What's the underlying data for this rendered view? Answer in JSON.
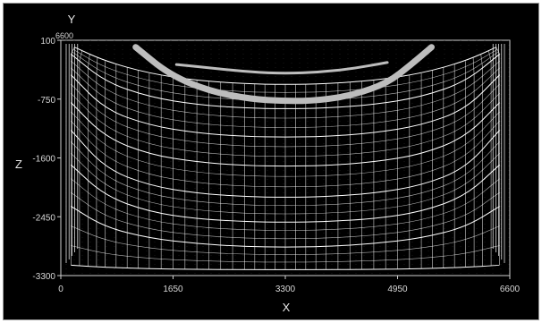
{
  "viewer": {
    "x_axis_letter": "X",
    "y_axis_letter": "Y",
    "z_axis_letter": "Z",
    "corner_label": "6600"
  },
  "colors": {
    "background": "#000000",
    "mesh_line": "#ffffff",
    "grid_line": "#d0d0d0",
    "thick_band": "#bdbdbd",
    "tick_text": "#d8d8d8"
  },
  "chart_data": {
    "type": "line",
    "title": "",
    "xlabel": "X",
    "ylabel": "Z",
    "xlim": [
      0,
      6600
    ],
    "ylim": [
      -3300,
      100
    ],
    "x_ticks": [
      "0",
      "1650",
      "3300",
      "4950",
      "6600"
    ],
    "x_tick_values": [
      0,
      1650,
      3300,
      4950,
      6600
    ],
    "z_ticks": [
      "100",
      "-750",
      "-1600",
      "-2450",
      "-3300"
    ],
    "z_tick_values": [
      100,
      -750,
      -1600,
      -2450,
      -3300
    ],
    "series": [
      {
        "x": [
          150,
          650,
          1300,
          2000,
          2700,
          3300,
          3900,
          4600,
          5300,
          5950,
          6450
        ],
        "values": [
          -3150,
          -3180,
          -3200,
          -3210,
          -3215,
          -3215,
          -3215,
          -3210,
          -3200,
          -3180,
          -3150
        ]
      },
      {
        "x": [
          150,
          650,
          1300,
          2000,
          2700,
          3300,
          3900,
          4600,
          5300,
          5950,
          6450
        ],
        "values": [
          -2300,
          -2600,
          -2760,
          -2840,
          -2880,
          -2890,
          -2880,
          -2840,
          -2760,
          -2600,
          -2300
        ]
      },
      {
        "x": [
          150,
          650,
          1300,
          2000,
          2700,
          3300,
          3900,
          4600,
          5300,
          5950,
          6450
        ],
        "values": [
          -1700,
          -2150,
          -2380,
          -2480,
          -2520,
          -2530,
          -2520,
          -2480,
          -2380,
          -2150,
          -1700
        ]
      },
      {
        "x": [
          150,
          650,
          1300,
          2000,
          2700,
          3300,
          3900,
          4600,
          5300,
          5950,
          6450
        ],
        "values": [
          -1200,
          -1750,
          -2000,
          -2110,
          -2160,
          -2170,
          -2160,
          -2110,
          -2000,
          -1750,
          -1200
        ]
      },
      {
        "x": [
          150,
          650,
          1300,
          2000,
          2700,
          3300,
          3900,
          4600,
          5300,
          5950,
          6450
        ],
        "values": [
          -800,
          -1300,
          -1550,
          -1660,
          -1710,
          -1720,
          -1710,
          -1660,
          -1550,
          -1300,
          -800
        ]
      },
      {
        "x": [
          150,
          650,
          1300,
          2000,
          2700,
          3300,
          3900,
          4600,
          5300,
          5950,
          6450
        ],
        "values": [
          -400,
          -900,
          -1130,
          -1240,
          -1290,
          -1300,
          -1290,
          -1240,
          -1130,
          -900,
          -400
        ]
      },
      {
        "x": [
          150,
          650,
          1300,
          2000,
          2700,
          3300,
          3900,
          4600,
          5300,
          5950,
          6450
        ],
        "values": [
          -100,
          -500,
          -720,
          -830,
          -880,
          -890,
          -880,
          -830,
          -720,
          -500,
          -100
        ]
      },
      {
        "x": [
          200,
          650,
          1300,
          2000,
          2700,
          3300,
          3900,
          4600,
          5300,
          5950,
          6400
        ],
        "values": [
          0,
          -200,
          -380,
          -480,
          -530,
          -540,
          -530,
          -480,
          -380,
          -200,
          0
        ]
      }
    ],
    "bands": [
      {
        "x": [
          1100,
          1600,
          2200,
          2800,
          3300,
          3800,
          4300,
          4800,
          5150,
          5450
        ],
        "values": [
          0,
          -400,
          -640,
          -750,
          -780,
          -770,
          -690,
          -520,
          -250,
          0
        ]
      },
      {
        "x": [
          1700,
          2200,
          2800,
          3300,
          3800,
          4300,
          4800
        ],
        "values": [
          -250,
          -300,
          -360,
          -380,
          -360,
          -310,
          -220
        ]
      }
    ],
    "grid": true
  }
}
